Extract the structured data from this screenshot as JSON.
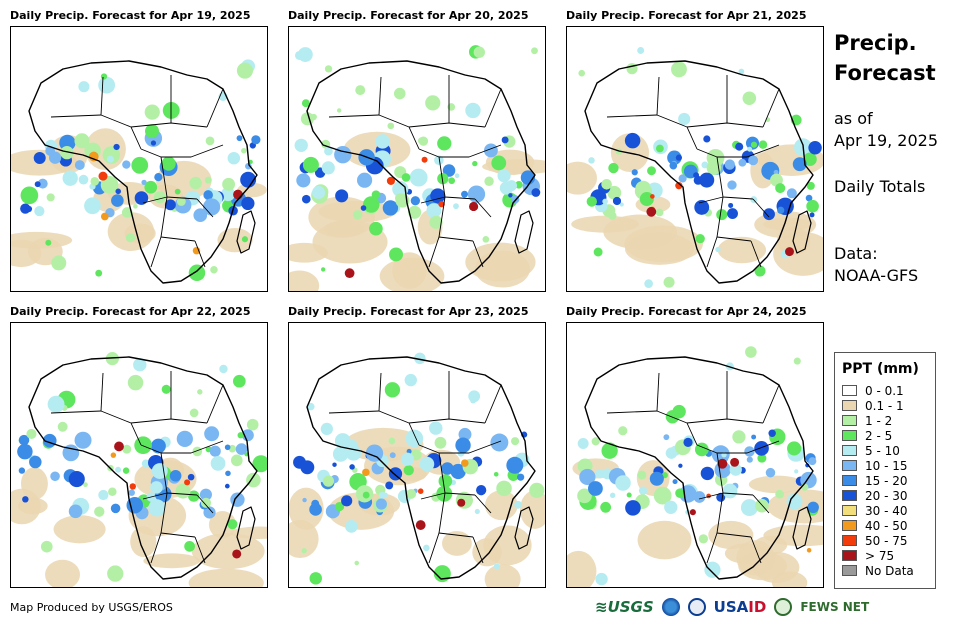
{
  "panels": [
    {
      "title": "Daily Precip. Forecast for Apr 19, 2025"
    },
    {
      "title": "Daily Precip. Forecast for Apr 20, 2025"
    },
    {
      "title": "Daily Precip. Forecast for Apr 21, 2025"
    },
    {
      "title": "Daily Precip. Forecast for Apr 22, 2025"
    },
    {
      "title": "Daily Precip. Forecast for Apr 23, 2025"
    },
    {
      "title": "Daily Precip. Forecast for Apr 24, 2025"
    }
  ],
  "side": {
    "title_line1": "Precip.",
    "title_line2": "Forecast",
    "asof_line1": "as of",
    "asof_line2": "Apr 19, 2025",
    "totals": "Daily Totals",
    "data_label": "Data:",
    "data_source": "NOAA-GFS"
  },
  "legend": {
    "title": "PPT (mm)",
    "items": [
      {
        "label": "0 - 0.1",
        "color": "#ffffff"
      },
      {
        "label": "0.1 - 1",
        "color": "#ead6b0"
      },
      {
        "label": "1 - 2",
        "color": "#b3f0a6"
      },
      {
        "label": "2 - 5",
        "color": "#5ee65e"
      },
      {
        "label": "5 - 10",
        "color": "#b4ecf2"
      },
      {
        "label": "10 - 15",
        "color": "#7ab6f2"
      },
      {
        "label": "15 - 20",
        "color": "#3a8ce6"
      },
      {
        "label": "20 - 30",
        "color": "#1852d6"
      },
      {
        "label": "30 - 40",
        "color": "#f2de7a"
      },
      {
        "label": "40 - 50",
        "color": "#f29a1e"
      },
      {
        "label": "50 - 75",
        "color": "#f23c0c"
      },
      {
        "label": "> 75",
        "color": "#a8141a"
      },
      {
        "label": "No Data",
        "color": "#9a9a9a"
      }
    ]
  },
  "footer": {
    "credit": "Map Produced by USGS/EROS",
    "logo_usgs": "≋USGS",
    "logo_usaid_a": "USA",
    "logo_usaid_b": "ID",
    "logo_fews": "FEWS NET"
  }
}
